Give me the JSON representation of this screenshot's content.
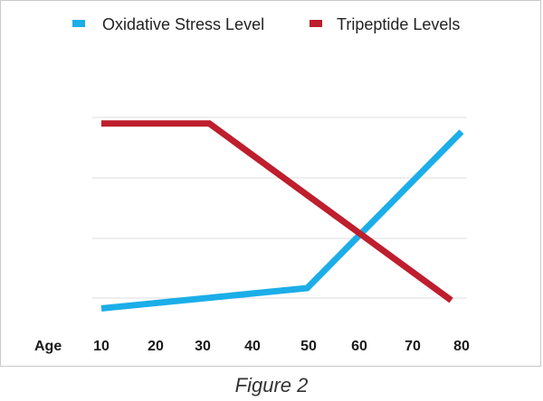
{
  "caption": "Figure 2",
  "chart_data": {
    "type": "line",
    "xlabel": "Age",
    "ylabel": "",
    "x_ticks": [
      10,
      20,
      30,
      40,
      50,
      60,
      70,
      80
    ],
    "xlim": [
      10,
      80
    ],
    "ylim": [
      0,
      100
    ],
    "grid": true,
    "legend_position": "top",
    "series": [
      {
        "name": "Oxidative Stress Level",
        "color": "#1BAEE8",
        "points": [
          [
            10,
            6
          ],
          [
            50,
            16
          ],
          [
            80,
            93
          ]
        ]
      },
      {
        "name": "Tripeptide Levels",
        "color": "#BE1E2D",
        "points": [
          [
            10,
            97
          ],
          [
            31,
            97
          ],
          [
            78,
            10
          ]
        ]
      }
    ]
  }
}
